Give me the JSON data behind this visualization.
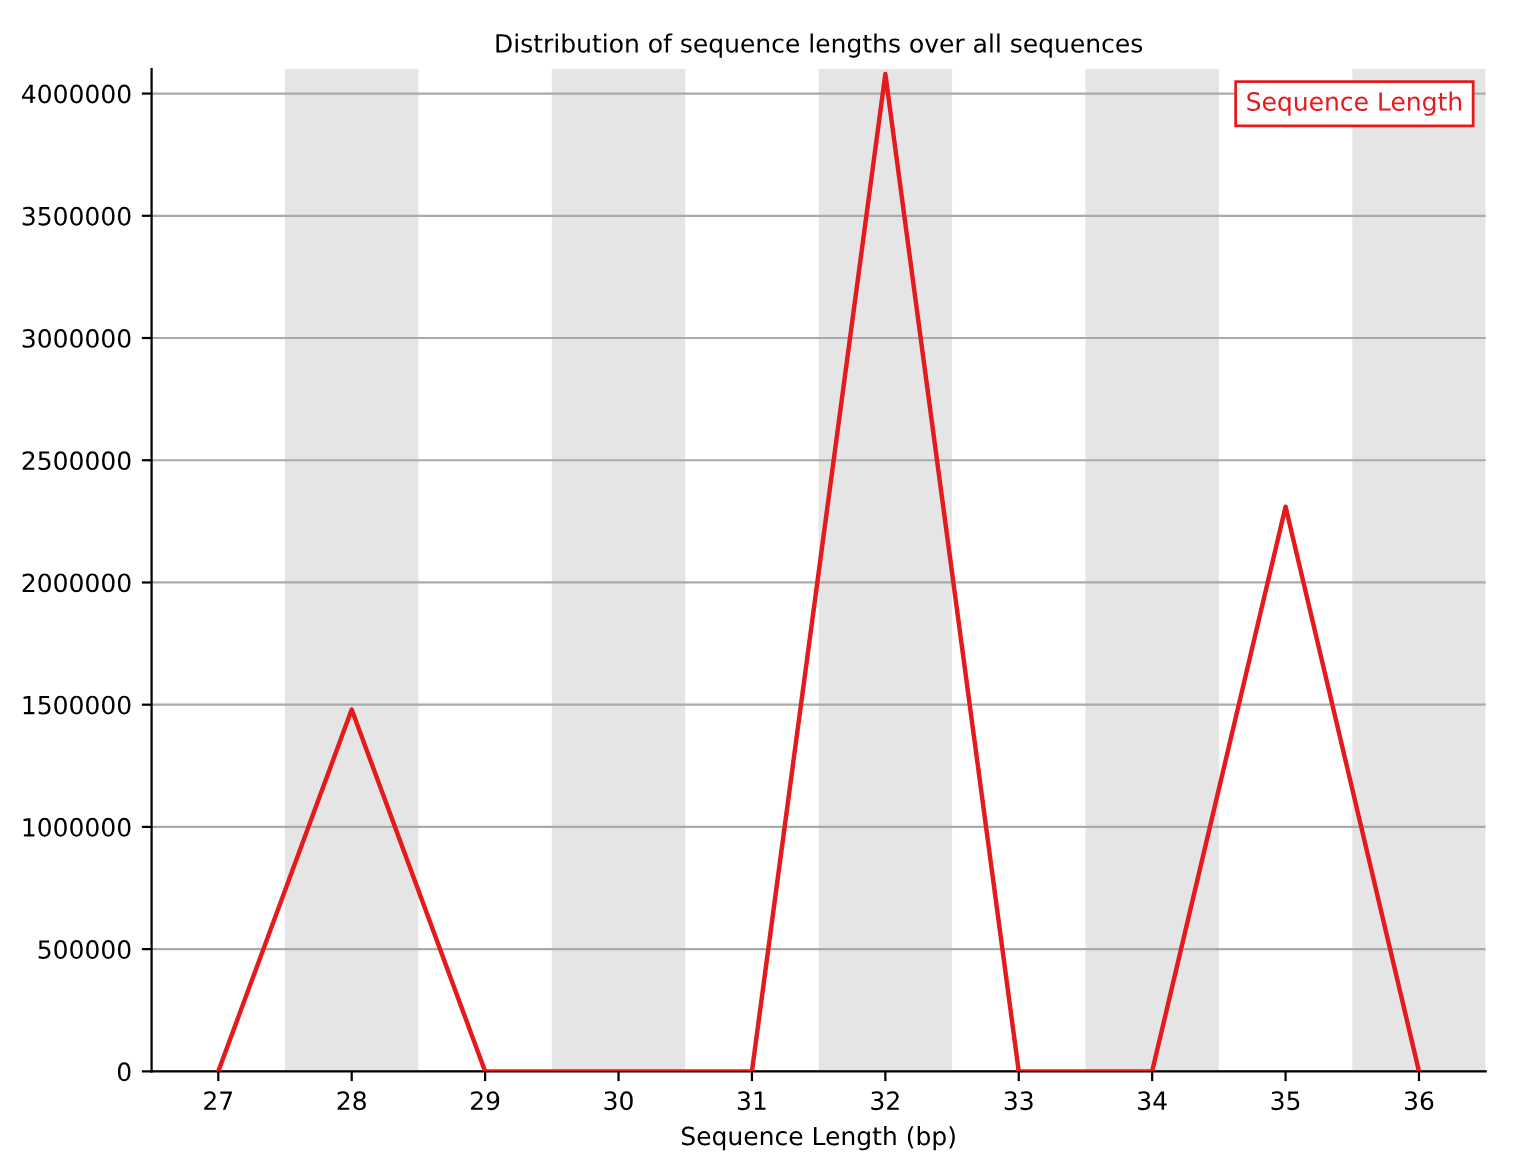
{
  "chart_data": {
    "type": "line",
    "title": "Distribution of sequence lengths over all sequences",
    "xlabel": "Sequence Length (bp)",
    "x": [
      27,
      28,
      29,
      30,
      31,
      32,
      33,
      34,
      35,
      36
    ],
    "series": [
      {
        "name": "Sequence Length",
        "color": "#e41a1c",
        "values": [
          0,
          1480000,
          0,
          0,
          0,
          4080000,
          0,
          0,
          2310000,
          0
        ]
      }
    ],
    "xlim": [
      26.5,
      36.5
    ],
    "xticks": [
      27,
      28,
      29,
      30,
      31,
      32,
      33,
      34,
      35,
      36
    ],
    "ylim": [
      0,
      4100000
    ],
    "yticks": [
      0,
      500000,
      1000000,
      1500000,
      2000000,
      2500000,
      3000000,
      3500000,
      4000000
    ],
    "bands": [
      {
        "axis": "x",
        "from": 27.5,
        "to": 28.5,
        "color": "#e5e5e5"
      },
      {
        "axis": "x",
        "from": 29.5,
        "to": 30.5,
        "color": "#e5e5e5"
      },
      {
        "axis": "x",
        "from": 31.5,
        "to": 32.5,
        "color": "#e5e5e5"
      },
      {
        "axis": "x",
        "from": 33.5,
        "to": 34.5,
        "color": "#e5e5e5"
      },
      {
        "axis": "x",
        "from": 35.5,
        "to": 36.5,
        "color": "#e5e5e5"
      }
    ],
    "grid": "y",
    "legend": "top right",
    "marker": "none",
    "line_style": "solid"
  }
}
